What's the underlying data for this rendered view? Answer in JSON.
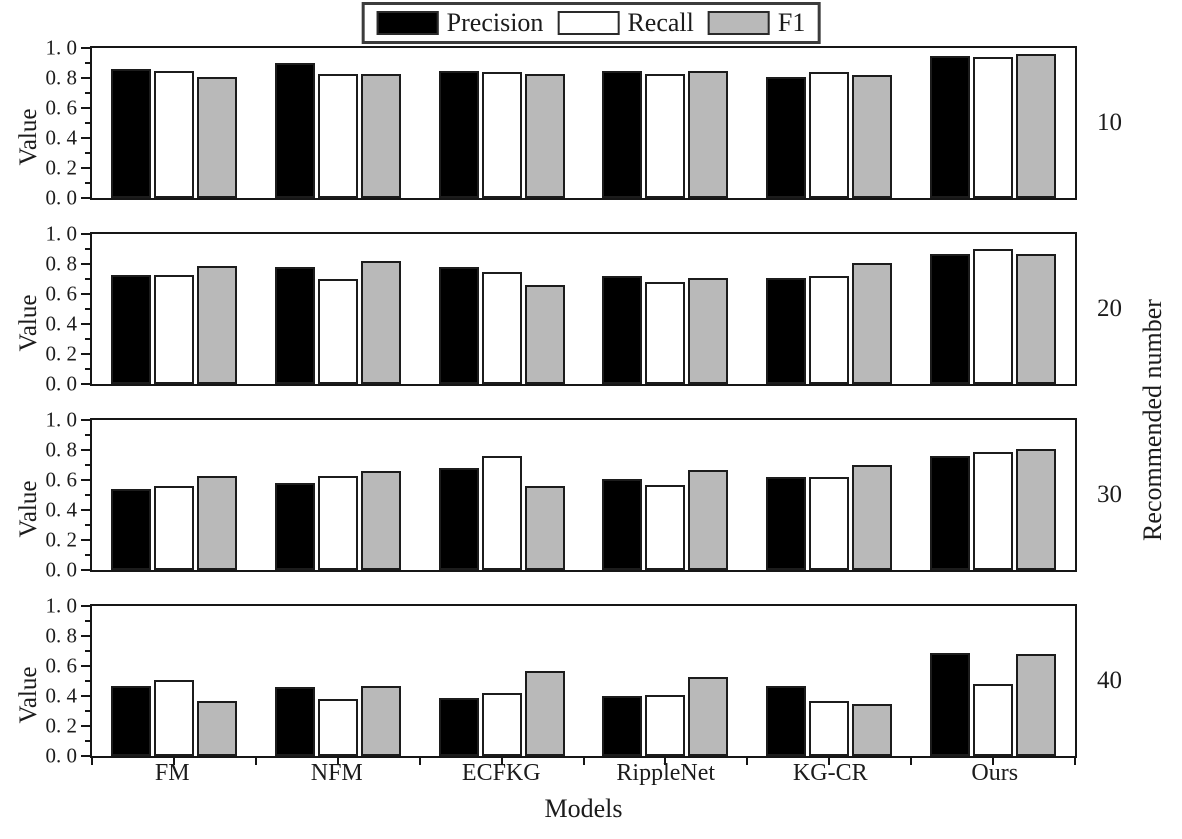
{
  "figure": {
    "background": "#ffffff",
    "text_color": "#1c1c1c"
  },
  "chart_data": {
    "type": "bar",
    "title": "",
    "categories": [
      "FM",
      "NFM",
      "ECFKG",
      "RippleNet",
      "KG-CR",
      "Ours"
    ],
    "xlabel": "Models",
    "ylabel": "Value",
    "ylabel_right": "Recommended number",
    "ylim": [
      0.0,
      1.0
    ],
    "grid": false,
    "legend_position": "top-center",
    "ytick_values": [
      0.0,
      0.2,
      0.4,
      0.6,
      0.8,
      1.0
    ],
    "ytick_labels": [
      "0. 0",
      "0. 2",
      "0. 4",
      "0. 6",
      "0. 8",
      "1. 0"
    ],
    "minor_ytick_values": [
      0.1,
      0.3,
      0.5,
      0.7,
      0.9
    ],
    "legend": [
      {
        "label": "Precision",
        "color": "#000000"
      },
      {
        "label": "Recall",
        "color": "#ffffff"
      },
      {
        "label": "F1",
        "color": "#b9b9b9"
      }
    ],
    "panels": [
      {
        "right_label": "10",
        "series": [
          {
            "name": "Precision",
            "values": [
              0.86,
              0.9,
              0.85,
              0.85,
              0.81,
              0.95
            ]
          },
          {
            "name": "Recall",
            "values": [
              0.85,
              0.83,
              0.84,
              0.83,
              0.84,
              0.94
            ]
          },
          {
            "name": "F1",
            "values": [
              0.81,
              0.83,
              0.83,
              0.85,
              0.82,
              0.96
            ]
          }
        ]
      },
      {
        "right_label": "20",
        "series": [
          {
            "name": "Precision",
            "values": [
              0.73,
              0.78,
              0.78,
              0.72,
              0.71,
              0.87
            ]
          },
          {
            "name": "Recall",
            "values": [
              0.73,
              0.7,
              0.75,
              0.68,
              0.72,
              0.9
            ]
          },
          {
            "name": "F1",
            "values": [
              0.79,
              0.82,
              0.66,
              0.71,
              0.81,
              0.87
            ]
          }
        ]
      },
      {
        "right_label": "30",
        "series": [
          {
            "name": "Precision",
            "values": [
              0.54,
              0.58,
              0.68,
              0.61,
              0.62,
              0.76
            ]
          },
          {
            "name": "Recall",
            "values": [
              0.56,
              0.63,
              0.76,
              0.57,
              0.62,
              0.79
            ]
          },
          {
            "name": "F1",
            "values": [
              0.63,
              0.66,
              0.56,
              0.67,
              0.7,
              0.81
            ]
          }
        ]
      },
      {
        "right_label": "40",
        "series": [
          {
            "name": "Precision",
            "values": [
              0.47,
              0.46,
              0.39,
              0.4,
              0.47,
              0.69
            ]
          },
          {
            "name": "Recall",
            "values": [
              0.51,
              0.38,
              0.42,
              0.41,
              0.37,
              0.48
            ]
          },
          {
            "name": "F1",
            "values": [
              0.37,
              0.47,
              0.57,
              0.53,
              0.35,
              0.68
            ]
          }
        ]
      }
    ]
  }
}
